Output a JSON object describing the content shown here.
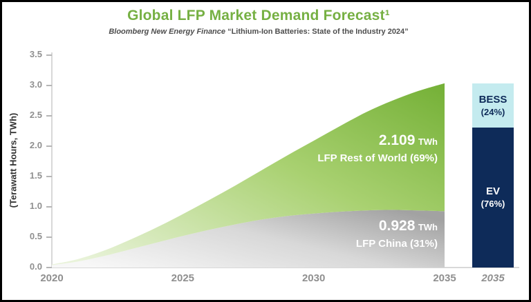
{
  "chart_data": [
    {
      "type": "area",
      "stacked": true,
      "title": "Global LFP Market Demand Forecast¹",
      "subtitle_source": "Bloomberg New Energy Finance",
      "subtitle_report": "“Lithium-Ion Batteries: State of the Industry 2024”",
      "ylabel": "(Terawatt Hours, TWh)",
      "ylim": [
        0,
        3.5
      ],
      "yticks": [
        0,
        0.5,
        1,
        1.5,
        2,
        2.5,
        3,
        3.5
      ],
      "ytick_labels": [
        "0.0",
        "0.5",
        "1.0",
        "1.5",
        "2.0",
        "2.5",
        "3.0",
        "3.5"
      ],
      "xticks": [
        2020,
        2025,
        2030,
        2035
      ],
      "x": [
        2020,
        2021,
        2022,
        2023,
        2024,
        2025,
        2026,
        2027,
        2028,
        2029,
        2030,
        2031,
        2032,
        2033,
        2034,
        2035
      ],
      "series": [
        {
          "name": "LFP China",
          "share_label": "(31%)",
          "final_value_twh": 0.928,
          "values": [
            0.04,
            0.1,
            0.19,
            0.3,
            0.41,
            0.52,
            0.62,
            0.71,
            0.79,
            0.85,
            0.89,
            0.92,
            0.94,
            0.95,
            0.94,
            0.928
          ],
          "gradient": [
            "#f7f7f7",
            "#d8d8d8",
            "#a2a2a2"
          ]
        },
        {
          "name": "LFP Rest of World",
          "share_label": "(69%)",
          "final_value_twh": 2.109,
          "values": [
            0.01,
            0.04,
            0.09,
            0.16,
            0.25,
            0.36,
            0.49,
            0.64,
            0.81,
            1.0,
            1.2,
            1.41,
            1.62,
            1.8,
            1.97,
            2.109
          ],
          "gradient": [
            "#e9f3da",
            "#a9d171",
            "#74b036"
          ]
        }
      ],
      "annotations": [
        {
          "value": "2.109",
          "unit": "TWh",
          "label": "LFP Rest of World (69%)"
        },
        {
          "value": "0.928",
          "unit": "TWh",
          "label": "LFP China (31%)"
        }
      ],
      "grid": false,
      "legend": false
    },
    {
      "type": "bar",
      "stacked": true,
      "title": "2035",
      "total_twh": 3.037,
      "segments": [
        {
          "name": "BESS",
          "share_label": "(24%)",
          "share": 0.24,
          "color": "#c4ebef",
          "text_color": "#0e2b59"
        },
        {
          "name": "EV",
          "share_label": "(76%)",
          "share": 0.76,
          "color": "#0e2b59",
          "text_color": "#ffffff"
        }
      ]
    }
  ],
  "colors": {
    "title_green": "#76b043",
    "axis_gray": "#8f8f8f",
    "navy": "#0e2b59",
    "bess_cyan": "#c4ebef"
  }
}
